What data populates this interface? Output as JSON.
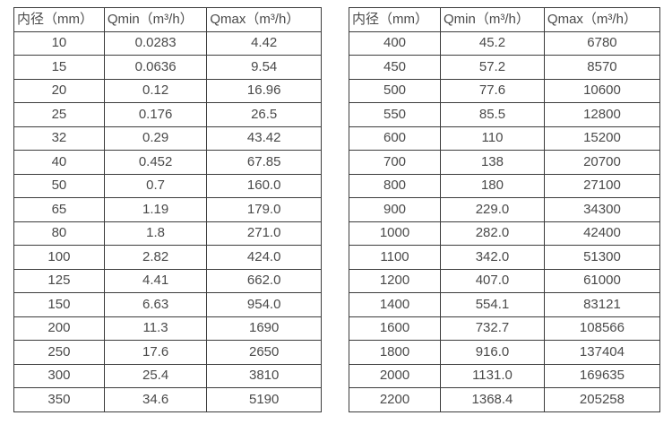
{
  "colors": {
    "background": "#ffffff",
    "table_border": "#3c3c3c",
    "table_text": "#4a4a4a"
  },
  "tables": [
    {
      "name": "flow-rate-table-small-diameters",
      "headers": [
        "内径（mm）",
        "Qmin（m³/h）",
        "Qmax（m³/h）"
      ],
      "rows": [
        [
          "10",
          "0.0283",
          "4.42"
        ],
        [
          "15",
          "0.0636",
          "9.54"
        ],
        [
          "20",
          "0.12",
          "16.96"
        ],
        [
          "25",
          "0.176",
          "26.5"
        ],
        [
          "32",
          "0.29",
          "43.42"
        ],
        [
          "40",
          "0.452",
          "67.85"
        ],
        [
          "50",
          "0.7",
          "160.0"
        ],
        [
          "65",
          "1.19",
          "179.0"
        ],
        [
          "80",
          "1.8",
          "271.0"
        ],
        [
          "100",
          "2.82",
          "424.0"
        ],
        [
          "125",
          "4.41",
          "662.0"
        ],
        [
          "150",
          "6.63",
          "954.0"
        ],
        [
          "200",
          "11.3",
          "1690"
        ],
        [
          "250",
          "17.6",
          "2650"
        ],
        [
          "300",
          "25.4",
          "3810"
        ],
        [
          "350",
          "34.6",
          "5190"
        ]
      ]
    },
    {
      "name": "flow-rate-table-large-diameters",
      "headers": [
        "内径（mm）",
        "Qmin（m³/h）",
        "Qmax（m³/h）"
      ],
      "rows": [
        [
          "400",
          "45.2",
          "6780"
        ],
        [
          "450",
          "57.2",
          "8570"
        ],
        [
          "500",
          "77.6",
          "10600"
        ],
        [
          "550",
          "85.5",
          "12800"
        ],
        [
          "600",
          "110",
          "15200"
        ],
        [
          "700",
          "138",
          "20700"
        ],
        [
          "800",
          "180",
          "27100"
        ],
        [
          "900",
          "229.0",
          "34300"
        ],
        [
          "1000",
          "282.0",
          "42400"
        ],
        [
          "1100",
          "342.0",
          "51300"
        ],
        [
          "1200",
          "407.0",
          "61000"
        ],
        [
          "1400",
          "554.1",
          "83121"
        ],
        [
          "1600",
          "732.7",
          "108566"
        ],
        [
          "1800",
          "916.0",
          "137404"
        ],
        [
          "2000",
          "1131.0",
          "169635"
        ],
        [
          "2200",
          "1368.4",
          "205258"
        ]
      ]
    }
  ]
}
